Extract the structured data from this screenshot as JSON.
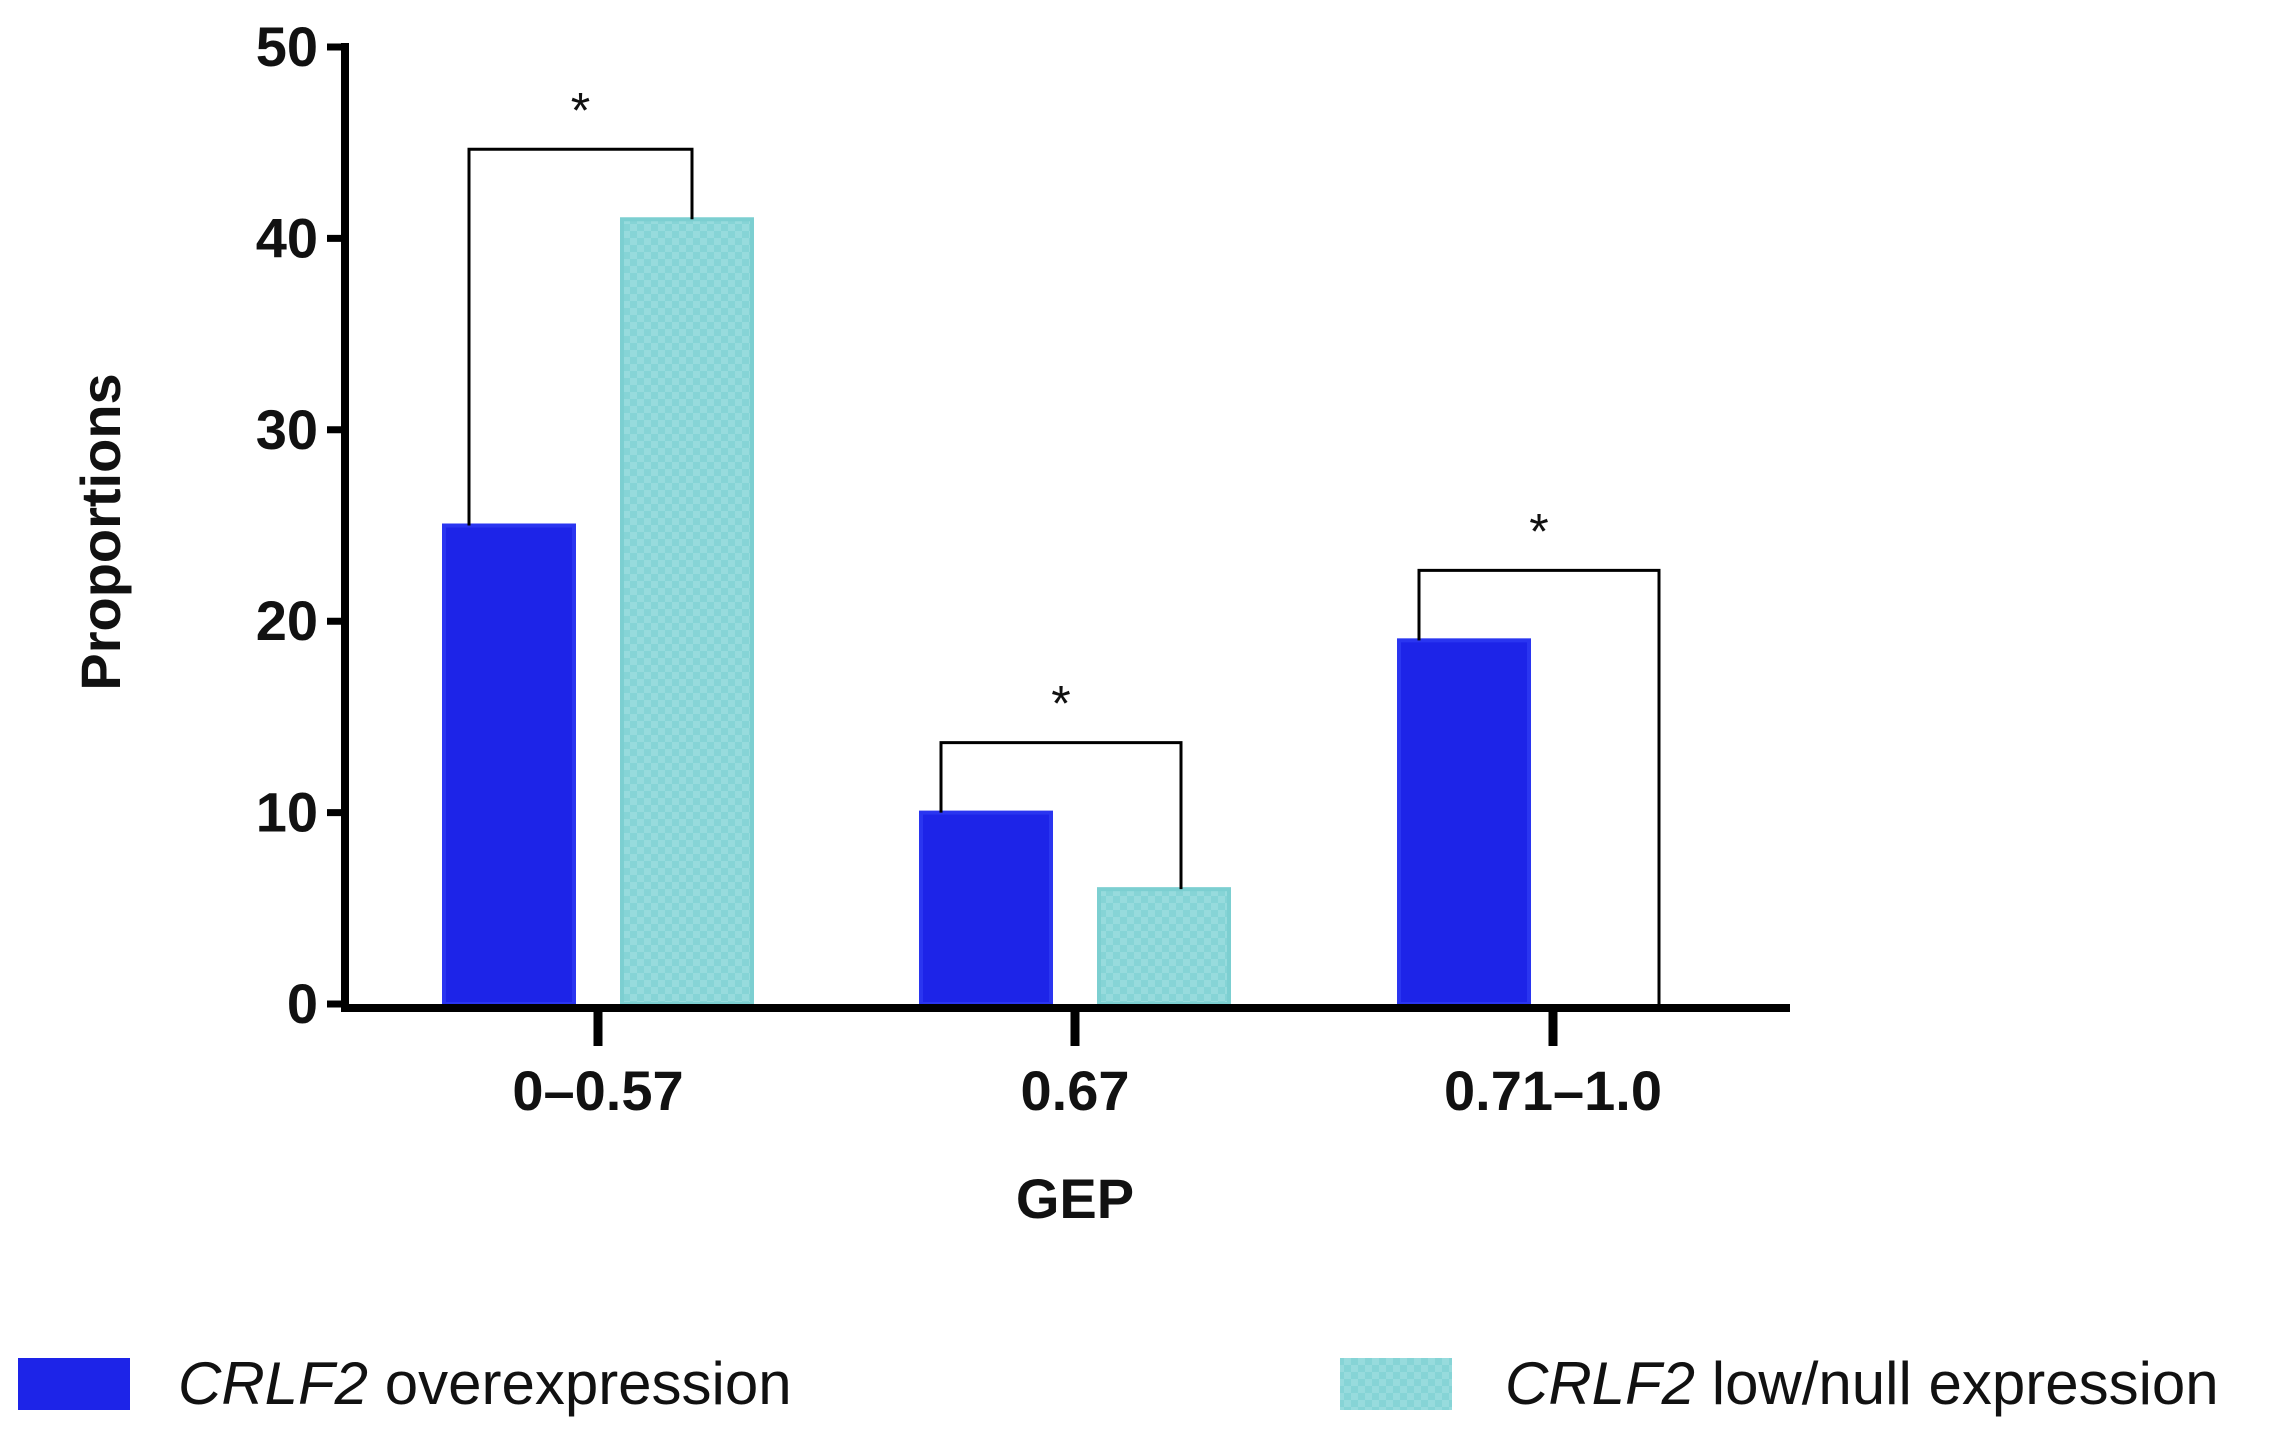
{
  "chart_data": {
    "type": "bar",
    "title": "",
    "xlabel": "GEP",
    "ylabel": "Proportions",
    "ylim": [
      0,
      50
    ],
    "yticks": [
      0,
      10,
      20,
      30,
      40,
      50
    ],
    "categories": [
      "0–0.57",
      "0.67",
      "0.71–1.0"
    ],
    "series": [
      {
        "name": "CRLF2 overexpression",
        "gene": "CRLF2",
        "suffix": " overexpression",
        "color": "#1d24e8",
        "pattern": "solid",
        "values": [
          25,
          10,
          19
        ]
      },
      {
        "name": "CRLF2 low/null expression",
        "gene": "CRLF2",
        "suffix": " low/null expression",
        "color": "#86d4d6",
        "pattern": "crosshatch",
        "values": [
          41,
          6,
          0
        ]
      }
    ],
    "annotations": [
      {
        "category": "0–0.57",
        "label": "*"
      },
      {
        "category": "0.67",
        "label": "*"
      },
      {
        "category": "0.71–1.0",
        "label": "*"
      }
    ],
    "legend_position": "bottom"
  }
}
